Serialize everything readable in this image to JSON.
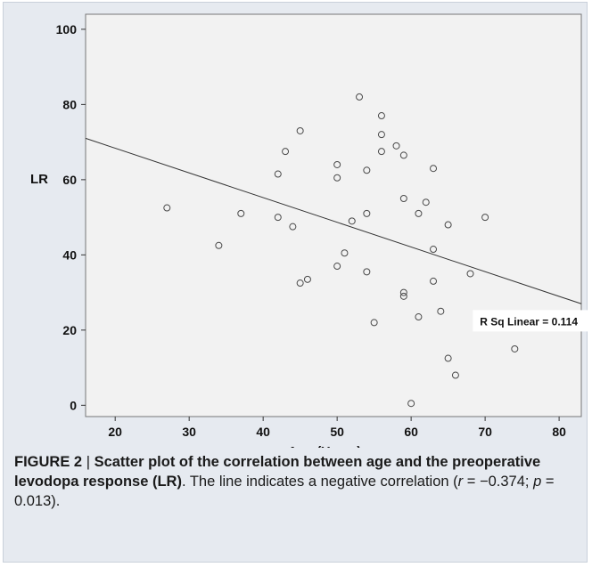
{
  "chart_data": {
    "type": "scatter",
    "xlabel": "Age (Years)",
    "ylabel": "LR",
    "xlim": [
      16,
      83
    ],
    "ylim": [
      -3,
      104
    ],
    "xticks": [
      20,
      30,
      40,
      50,
      60,
      70,
      80
    ],
    "yticks": [
      0,
      20,
      40,
      60,
      80,
      100
    ],
    "grid": false,
    "points": [
      {
        "x": 27,
        "y": 52.5
      },
      {
        "x": 34,
        "y": 42.5
      },
      {
        "x": 37,
        "y": 51
      },
      {
        "x": 42,
        "y": 50
      },
      {
        "x": 42,
        "y": 61.5
      },
      {
        "x": 43,
        "y": 67.5
      },
      {
        "x": 44,
        "y": 47.5
      },
      {
        "x": 45,
        "y": 73
      },
      {
        "x": 45,
        "y": 32.5
      },
      {
        "x": 46,
        "y": 33.5
      },
      {
        "x": 50,
        "y": 64
      },
      {
        "x": 50,
        "y": 60.5
      },
      {
        "x": 50,
        "y": 37
      },
      {
        "x": 51,
        "y": 40.5
      },
      {
        "x": 52,
        "y": 49
      },
      {
        "x": 53,
        "y": 82
      },
      {
        "x": 54,
        "y": 62.5
      },
      {
        "x": 54,
        "y": 51
      },
      {
        "x": 54,
        "y": 35.5
      },
      {
        "x": 55,
        "y": 22
      },
      {
        "x": 56,
        "y": 77
      },
      {
        "x": 56,
        "y": 72
      },
      {
        "x": 56,
        "y": 67.5
      },
      {
        "x": 58,
        "y": 69
      },
      {
        "x": 59,
        "y": 66.5
      },
      {
        "x": 59,
        "y": 55
      },
      {
        "x": 59,
        "y": 30
      },
      {
        "x": 59,
        "y": 29
      },
      {
        "x": 60,
        "y": 0.5
      },
      {
        "x": 61,
        "y": 51
      },
      {
        "x": 61,
        "y": 23.5
      },
      {
        "x": 62,
        "y": 54
      },
      {
        "x": 63,
        "y": 63
      },
      {
        "x": 63,
        "y": 41.5
      },
      {
        "x": 63,
        "y": 33
      },
      {
        "x": 64,
        "y": 25
      },
      {
        "x": 65,
        "y": 48
      },
      {
        "x": 65,
        "y": 12.5
      },
      {
        "x": 66,
        "y": 8
      },
      {
        "x": 68,
        "y": 35
      },
      {
        "x": 70,
        "y": 50
      },
      {
        "x": 74,
        "y": 15
      }
    ],
    "fit_line": {
      "x": [
        16,
        83
      ],
      "y": [
        71,
        27
      ]
    },
    "annotation": "R Sq Linear = 0.114"
  },
  "caption": {
    "label": "FIGURE 2",
    "separator": " | ",
    "title_bold": "Scatter plot of the correlation between age and the preoperative levodopa response (LR)",
    "text_1": ". The line indicates a negative correlation (",
    "r_symbol": "r",
    "text_2": " = −0.374; ",
    "p_symbol": "p",
    "text_3": " = 0.013)."
  },
  "colors": {
    "panel_bg": "#e6eaf0",
    "plot_bg": "#f2f2f2",
    "marker": "#4a4a4a",
    "line": "#333333"
  }
}
